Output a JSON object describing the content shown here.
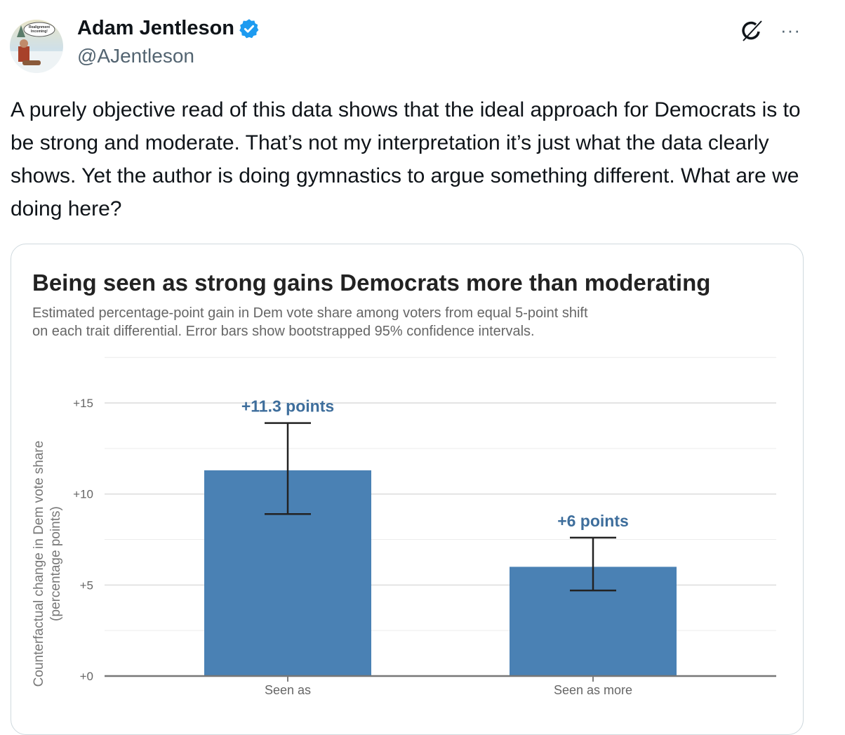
{
  "tweet": {
    "author_name": "Adam Jentleson",
    "handle": "@AJentleson",
    "avatar_text": "Realignment Incoming!",
    "verified_color": "#1d9bf0",
    "body": "A purely objective read of this data shows that the ideal approach for Democrats is to be strong and moderate. That’s not my interpretation it’s just what the data clearly shows. Yet the author is doing gymnastics to argue something different. What are we doing here?",
    "more_label": "···"
  },
  "chart_data": {
    "type": "bar",
    "title": "Being seen as strong gains Democrats more than moderating",
    "subtitle_lines": [
      "Estimated percentage-point gain in Dem vote share among voters from equal 5-point shift",
      "on each trait differential. Error bars show bootstrapped 95% confidence intervals."
    ],
    "ylabel_lines": [
      "Counterfactual change in Dem vote share",
      "(percentage points)"
    ],
    "categories": [
      "Seen as",
      "Seen as more"
    ],
    "values": [
      11.3,
      6
    ],
    "ci_low": [
      8.9,
      4.7
    ],
    "ci_high": [
      13.9,
      7.6
    ],
    "data_labels": [
      "+11.3 points",
      "+6 points"
    ],
    "yticks": [
      0,
      5,
      10,
      15
    ],
    "ytick_labels": [
      "+0",
      "+5",
      "+10",
      "+15"
    ],
    "ylim": [
      0,
      17.5
    ],
    "bar_color": "#4a81b4",
    "label_color": "#3e6e9c",
    "grid": true
  }
}
